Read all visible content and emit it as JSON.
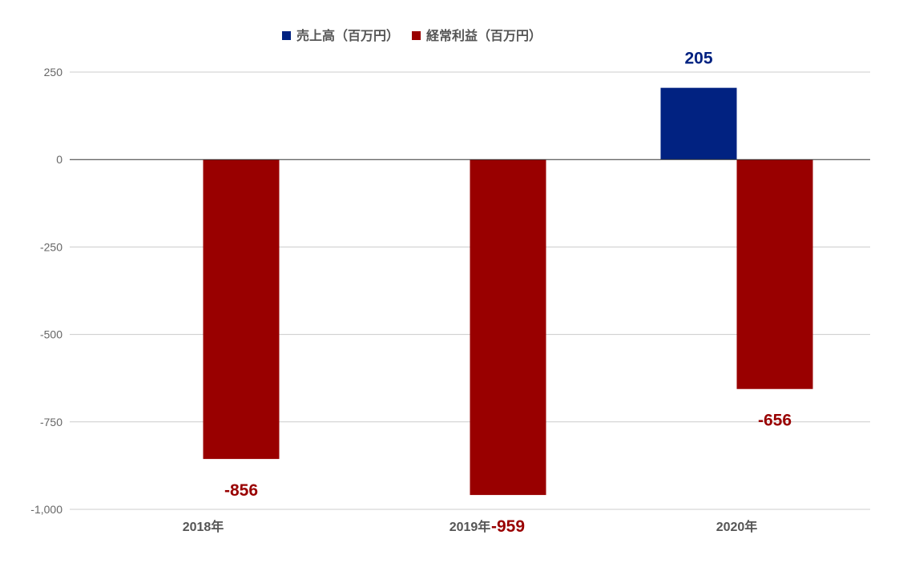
{
  "chart_data": {
    "type": "bar",
    "title": "",
    "xlabel": "",
    "ylabel": "",
    "categories": [
      "2018年",
      "2019年",
      "2020年"
    ],
    "series": [
      {
        "name": "売上高（百万円）",
        "values": [
          null,
          null,
          205
        ],
        "color": "#012281"
      },
      {
        "name": "経常利益（百万円）",
        "values": [
          -856,
          -959,
          -656
        ],
        "color": "#990000"
      }
    ],
    "ylim": [
      -1000,
      250
    ],
    "yticks": [
      250,
      0,
      -250,
      -500,
      -750,
      -1000
    ],
    "ytick_labels": [
      "250",
      "0",
      "-250",
      "-500",
      "-750",
      "-1,000"
    ],
    "data_labels": [
      {
        "series": 0,
        "category": 2,
        "text": "205"
      },
      {
        "series": 1,
        "category": 0,
        "text": "-856"
      },
      {
        "series": 1,
        "category": 1,
        "text": "-959"
      },
      {
        "series": 1,
        "category": 2,
        "text": "-656"
      }
    ],
    "grid": true,
    "legend_position": "top"
  }
}
